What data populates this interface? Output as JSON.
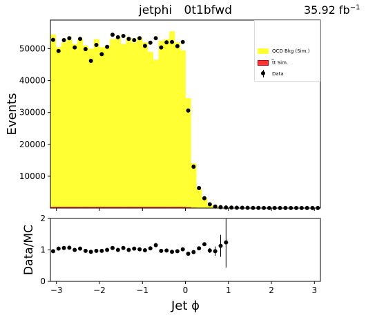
{
  "title_left": "jetphi",
  "title_right": "0t1bfwd",
  "lumi": "35.92 fb",
  "lumi_sup": "−1",
  "chart_data": [
    {
      "type": "bar",
      "panel": "main",
      "ylabel": "Events",
      "xlim": [
        -3.14,
        3.14
      ],
      "ylim": [
        0,
        59000
      ],
      "yticks": [
        10000,
        20000,
        30000,
        40000,
        50000
      ],
      "bin_edges": [
        -3.14,
        -3.0143,
        -2.8887,
        -2.763,
        -2.6373,
        -2.5117,
        -2.386,
        -2.2603,
        -2.1347,
        -2.009,
        -1.8833,
        -1.7577,
        -1.632,
        -1.5063,
        -1.3807,
        -1.255,
        -1.1293,
        -1.0037,
        -0.878,
        -0.7523,
        -0.6267,
        -0.501,
        -0.3753,
        -0.2497,
        -0.124,
        0.0017,
        0.1273,
        0.253,
        0.3787,
        0.5043,
        0.63,
        0.7557,
        0.8813,
        1.007,
        1.1327,
        1.2583,
        1.384,
        1.5097,
        1.6353,
        1.761,
        1.8867,
        2.0123,
        2.138,
        2.2637,
        2.3893,
        2.515,
        2.6407,
        2.7663,
        2.892,
        3.0177,
        3.14
      ],
      "series": [
        {
          "name": "QCD Bkg (Sim.)",
          "color": "#ffff33",
          "values": [
            54500,
            50500,
            52000,
            53000,
            51500,
            53000,
            51000,
            50000,
            53000,
            50500,
            51000,
            53000,
            53500,
            51500,
            53500,
            52000,
            53500,
            52000,
            49000,
            46500,
            52500,
            53000,
            55500,
            52000,
            49500,
            34500,
            14000,
            6000,
            3000,
            1000,
            500,
            300,
            200,
            150,
            100,
            80,
            60,
            50,
            40,
            30,
            30,
            20,
            20,
            20,
            20,
            20,
            20,
            20,
            20,
            20
          ]
        },
        {
          "name": "t̅t Sim.",
          "color": "#ff3333",
          "values": [
            400,
            400,
            400,
            400,
            400,
            400,
            400,
            400,
            400,
            400,
            400,
            400,
            400,
            400,
            400,
            400,
            400,
            400,
            400,
            400,
            400,
            400,
            400,
            400,
            400,
            300,
            150,
            80,
            40,
            20,
            10,
            5,
            5,
            5,
            5,
            5,
            5,
            5,
            5,
            5,
            5,
            5,
            5,
            5,
            5,
            5,
            5,
            5,
            5,
            5
          ]
        },
        {
          "name": "Data",
          "color": "#000000",
          "values": [
            52800,
            49300,
            52700,
            53300,
            50400,
            53100,
            49900,
            46200,
            51200,
            48300,
            50600,
            54400,
            53600,
            54000,
            53100,
            52700,
            53300,
            50900,
            51900,
            53300,
            50400,
            52000,
            52100,
            50800,
            52100,
            30600,
            13000,
            6300,
            3100,
            1200,
            500,
            300,
            200,
            150,
            120,
            100,
            80,
            60,
            50,
            40,
            40,
            30,
            30,
            30,
            30,
            30,
            30,
            30,
            30,
            30
          ]
        }
      ]
    },
    {
      "type": "scatter",
      "panel": "ratio",
      "xlabel": "Jet ϕ",
      "ylabel": "Data/MC",
      "xlim": [
        -3.14,
        3.14
      ],
      "ylim": [
        0,
        2
      ],
      "yticks": [
        0,
        1,
        2
      ],
      "xticks": [
        -3,
        -2,
        -1,
        0,
        1,
        2,
        3
      ],
      "x": [
        -3.077,
        -2.951,
        -2.826,
        -2.7,
        -2.575,
        -2.449,
        -2.323,
        -2.198,
        -2.072,
        -1.946,
        -1.821,
        -1.695,
        -1.569,
        -1.444,
        -1.318,
        -1.192,
        -1.066,
        -0.941,
        -0.815,
        -0.689,
        -0.564,
        -0.438,
        -0.312,
        -0.187,
        -0.061,
        0.065,
        0.19,
        0.316,
        0.442,
        0.567,
        0.693,
        0.819,
        0.945
      ],
      "y": [
        0.96,
        1.04,
        1.06,
        1.07,
        1.0,
        1.04,
        0.97,
        0.94,
        0.97,
        0.97,
        1.0,
        1.06,
        1.0,
        1.06,
        1.0,
        1.04,
        1.02,
        0.99,
        1.05,
        1.15,
        0.97,
        0.98,
        0.94,
        0.96,
        1.02,
        0.88,
        0.93,
        1.05,
        1.18,
        0.98,
        0.96,
        1.13,
        1.24
      ],
      "yerr": [
        0.01,
        0.01,
        0.01,
        0.01,
        0.01,
        0.01,
        0.01,
        0.01,
        0.01,
        0.01,
        0.01,
        0.01,
        0.01,
        0.01,
        0.01,
        0.01,
        0.01,
        0.01,
        0.01,
        0.01,
        0.01,
        0.01,
        0.01,
        0.01,
        0.01,
        0.01,
        0.02,
        0.03,
        0.04,
        0.08,
        0.15,
        0.35,
        0.8
      ]
    }
  ]
}
